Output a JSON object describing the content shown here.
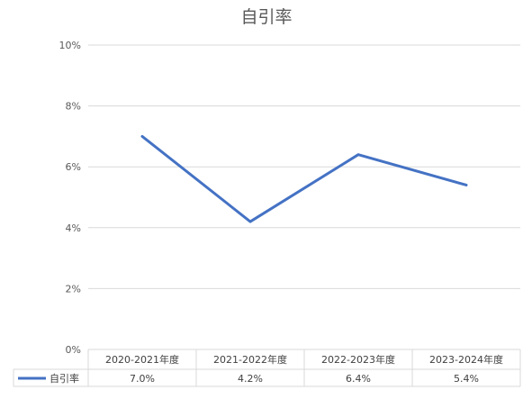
{
  "chart_data": {
    "type": "line",
    "title": "自引率",
    "categories": [
      "2020-2021年度",
      "2021-2022年度",
      "2022-2023年度",
      "2023-2024年度"
    ],
    "series": [
      {
        "name": "自引率",
        "values": [
          7.0,
          4.2,
          6.4,
          5.4
        ],
        "labels": [
          "7.0%",
          "4.2%",
          "6.4%",
          "5.4%"
        ],
        "color": "#4472C4"
      }
    ],
    "y_ticks": [
      "0%",
      "2%",
      "4%",
      "6%",
      "8%",
      "10%"
    ],
    "ylim": [
      0,
      10
    ],
    "grid": true,
    "data_table": true,
    "legend": "data-table-left"
  }
}
